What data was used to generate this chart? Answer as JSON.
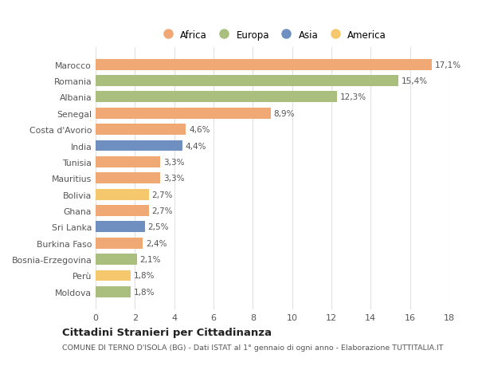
{
  "categories": [
    "Marocco",
    "Romania",
    "Albania",
    "Senegal",
    "Costa d'Avorio",
    "India",
    "Tunisia",
    "Mauritius",
    "Bolivia",
    "Ghana",
    "Sri Lanka",
    "Burkina Faso",
    "Bosnia-Erzegovina",
    "Perù",
    "Moldova"
  ],
  "values": [
    17.1,
    15.4,
    12.3,
    8.9,
    4.6,
    4.4,
    3.3,
    3.3,
    2.7,
    2.7,
    2.5,
    2.4,
    2.1,
    1.8,
    1.8
  ],
  "labels": [
    "17,1%",
    "15,4%",
    "12,3%",
    "8,9%",
    "4,6%",
    "4,4%",
    "3,3%",
    "3,3%",
    "2,7%",
    "2,7%",
    "2,5%",
    "2,4%",
    "2,1%",
    "1,8%",
    "1,8%"
  ],
  "continents": [
    "Africa",
    "Europa",
    "Europa",
    "Africa",
    "Africa",
    "Asia",
    "Africa",
    "Africa",
    "America",
    "Africa",
    "Asia",
    "Africa",
    "Europa",
    "America",
    "Europa"
  ],
  "continent_colors": {
    "Africa": "#F0A875",
    "Europa": "#AABF7E",
    "Asia": "#6F8FC0",
    "America": "#F5C86E"
  },
  "legend_order": [
    "Africa",
    "Europa",
    "Asia",
    "America"
  ],
  "title": "Cittadini Stranieri per Cittadinanza",
  "subtitle": "COMUNE DI TERNO D'ISOLA (BG) - Dati ISTAT al 1° gennaio di ogni anno - Elaborazione TUTTITALIA.IT",
  "xlim": [
    0,
    18
  ],
  "xticks": [
    0,
    2,
    4,
    6,
    8,
    10,
    12,
    14,
    16,
    18
  ],
  "background_color": "#ffffff",
  "grid_color": "#e0e0e0"
}
